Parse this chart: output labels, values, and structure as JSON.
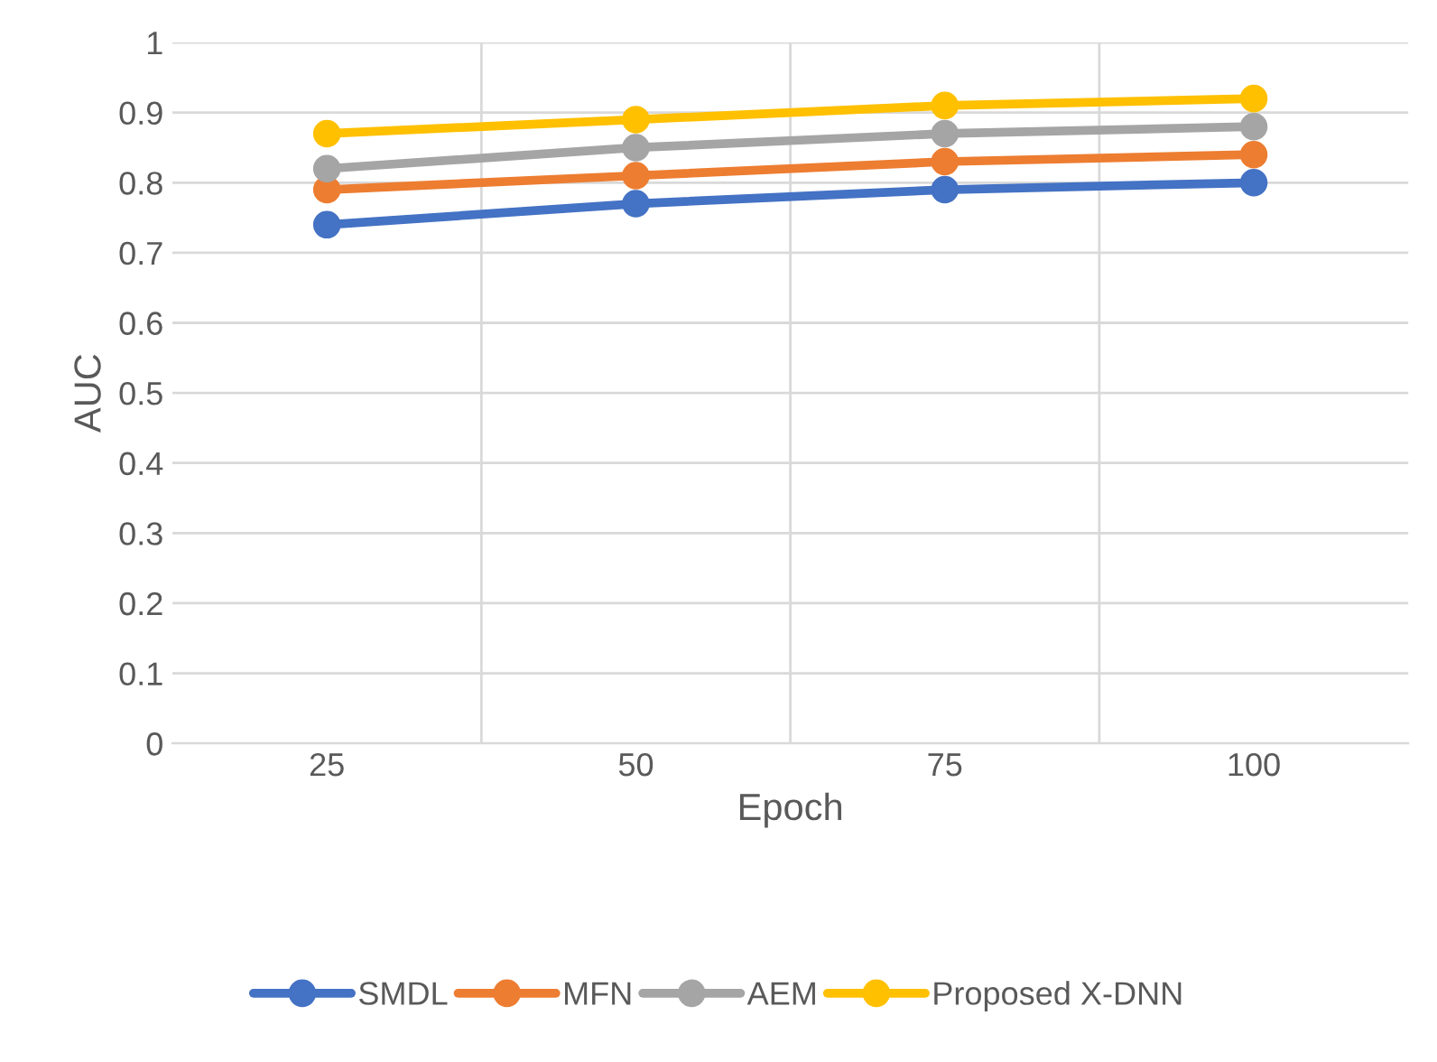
{
  "chart_data": {
    "type": "line",
    "xlabel": "Epoch",
    "ylabel": "AUC",
    "categories": [
      "25",
      "50",
      "75",
      "100"
    ],
    "series": [
      {
        "name": "SMDL",
        "color": "#4472c4",
        "values": [
          0.74,
          0.77,
          0.79,
          0.8
        ]
      },
      {
        "name": "MFN",
        "color": "#ed7d31",
        "values": [
          0.79,
          0.81,
          0.83,
          0.84
        ]
      },
      {
        "name": "AEM",
        "color": "#a5a5a5",
        "values": [
          0.82,
          0.85,
          0.87,
          0.88
        ]
      },
      {
        "name": "Proposed X-DNN",
        "color": "#ffc000",
        "values": [
          0.87,
          0.89,
          0.91,
          0.92
        ]
      }
    ],
    "ylim": [
      0,
      1
    ],
    "yticks": [
      0,
      0.1,
      0.2,
      0.3,
      0.4,
      0.5,
      0.6,
      0.7,
      0.8,
      0.9,
      1
    ],
    "grid": true,
    "legend": "bottom",
    "marker": "circle",
    "line_style": "solid"
  }
}
